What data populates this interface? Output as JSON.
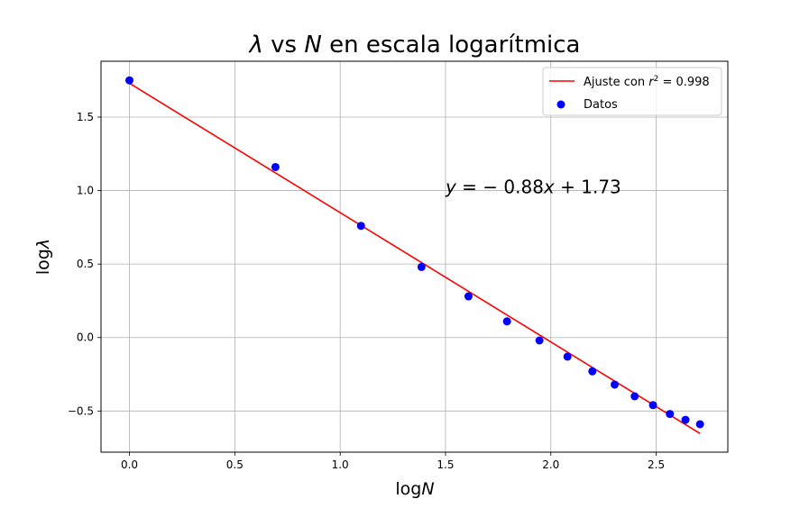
{
  "chart_data": {
    "type": "scatter",
    "title_parts": [
      {
        "text": "λ",
        "italic": true
      },
      {
        "text": " vs ",
        "italic": false
      },
      {
        "text": "N",
        "italic": true
      },
      {
        "text": " en escala logarítmica",
        "italic": false
      }
    ],
    "xlabel_parts": [
      {
        "text": "log",
        "italic": false
      },
      {
        "text": "N",
        "italic": true
      }
    ],
    "ylabel_parts": [
      {
        "text": "log",
        "italic": false
      },
      {
        "text": "λ",
        "italic": true
      }
    ],
    "xlim": [
      -0.135,
      2.84
    ],
    "ylim": [
      -0.78,
      1.88
    ],
    "xticks": [
      0.0,
      0.5,
      1.0,
      1.5,
      2.0,
      2.5
    ],
    "xtick_labels": [
      "0.0",
      "0.5",
      "1.0",
      "1.5",
      "2.0",
      "2.5"
    ],
    "yticks": [
      -0.5,
      0.0,
      0.5,
      1.0,
      1.5
    ],
    "ytick_labels": [
      "−0.5",
      "0.0",
      "0.5",
      "1.0",
      "1.5"
    ],
    "grid": true,
    "legend_position": "upper right",
    "series": [
      {
        "name": "Datos",
        "kind": "scatter",
        "color": "#0000ff",
        "x": [
          0.0,
          0.693,
          1.099,
          1.386,
          1.609,
          1.792,
          1.946,
          2.079,
          2.197,
          2.303,
          2.398,
          2.485,
          2.565,
          2.639,
          2.708
        ],
        "y": [
          1.75,
          1.16,
          0.76,
          0.48,
          0.28,
          0.11,
          -0.02,
          -0.13,
          -0.23,
          -0.32,
          -0.4,
          -0.46,
          -0.52,
          -0.56,
          -0.59
        ]
      },
      {
        "name": "Ajuste con r² = 0.998",
        "kind": "line",
        "color": "#ff0000",
        "slope": -0.88,
        "intercept": 1.73,
        "x": [
          0.0,
          2.708
        ]
      }
    ],
    "legend": {
      "fit_prefix": "Ajuste con ",
      "fit_var": "r",
      "fit_sup": "2",
      "fit_suffix": " = 0.998",
      "data_label": "Datos"
    },
    "annotation": {
      "x": 1.5,
      "y": 1.0,
      "parts": [
        {
          "text": "y",
          "italic": true
        },
        {
          "text": " = − 0.88",
          "italic": false
        },
        {
          "text": "x",
          "italic": true
        },
        {
          "text": " + 1.73",
          "italic": false
        }
      ]
    }
  }
}
